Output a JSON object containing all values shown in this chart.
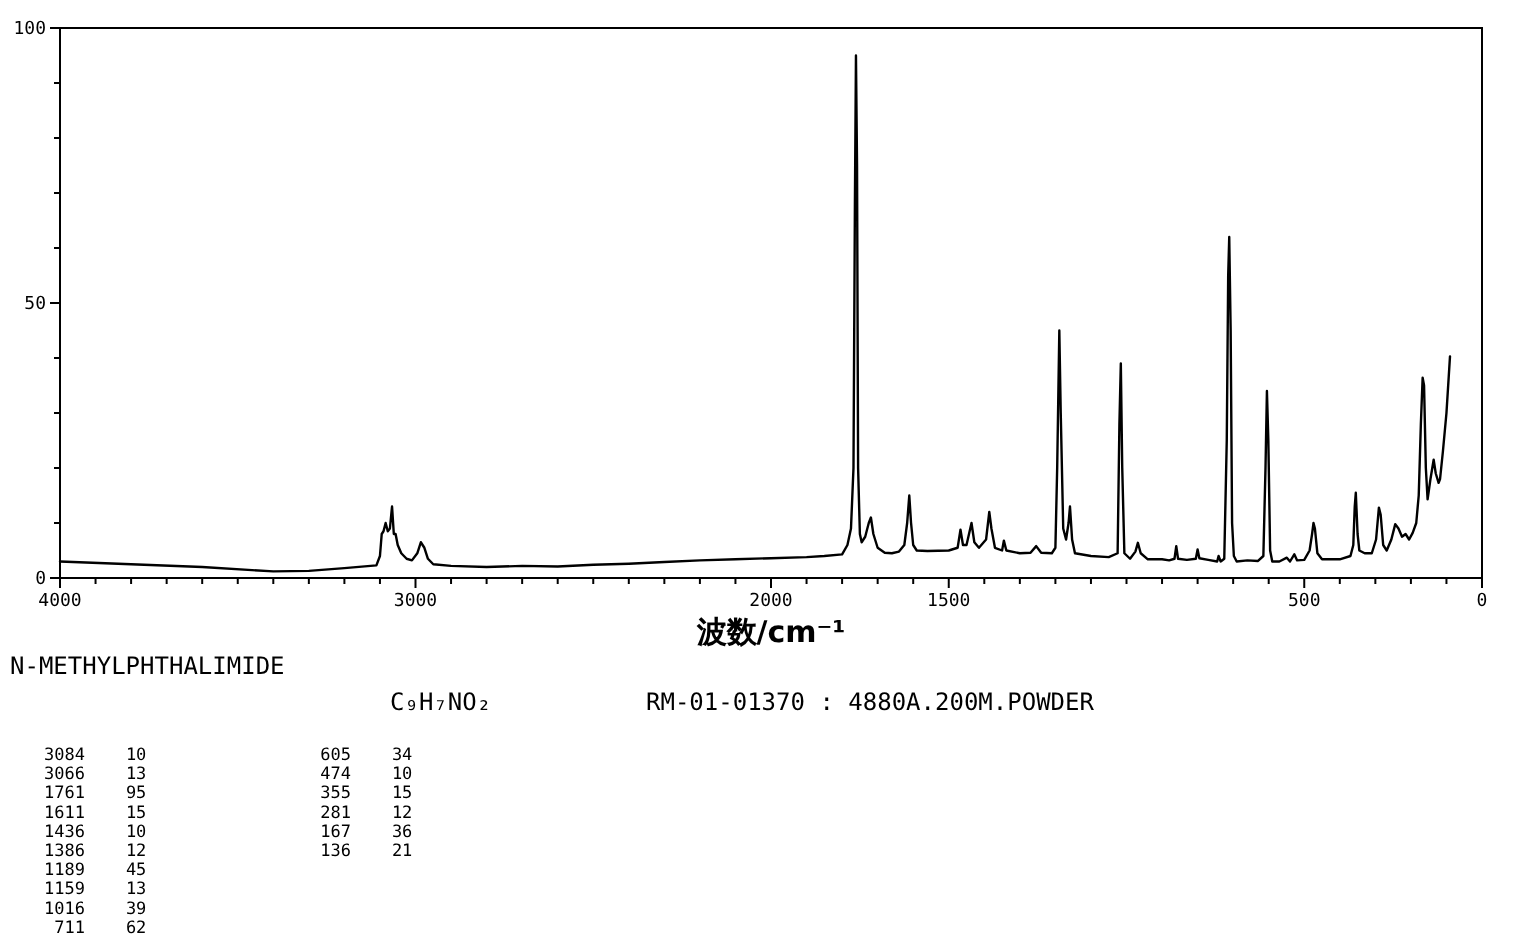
{
  "chart_data": {
    "type": "line",
    "title": "N-METHYLPHTHALIMIDE",
    "subtitle": "C₉H₇NO₂",
    "xlabel": "波数/cm⁻¹",
    "annotations": [
      "RM-01-01370 : 4880A.200M.POWDER",
      "3084    10",
      "3066    13",
      "1761    95",
      "1611    15",
      "1436    10",
      "1386    12",
      "1189    45",
      "1159    13",
      "1016    39",
      " 711    62",
      " 605    34",
      " 474    10",
      " 355    15",
      " 281    12",
      " 167    36",
      " 136    21"
    ],
    "xlim": [
      4000,
      0
    ],
    "ylim": [
      0,
      100
    ],
    "xticks": [
      4000,
      {
        "value": 3900,
        "label": null
      },
      {
        "value": 3800,
        "label": null
      },
      {
        "value": 3700,
        "label": null
      },
      {
        "value": 3600,
        "label": null
      },
      {
        "value": 3500,
        "label": null
      },
      {
        "value": 3400,
        "label": null
      },
      {
        "value": 3300,
        "label": null
      },
      {
        "value": 3200,
        "label": null
      },
      {
        "value": 3100,
        "label": null
      },
      3000,
      {
        "value": 2900,
        "label": null
      },
      {
        "value": 2800,
        "label": null
      },
      {
        "value": 2700,
        "label": null
      },
      {
        "value": 2600,
        "label": null
      },
      {
        "value": 2500,
        "label": null
      },
      {
        "value": 2400,
        "label": null
      },
      {
        "value": 2300,
        "label": null
      },
      {
        "value": 2200,
        "label": null
      },
      {
        "value": 2100,
        "label": null
      },
      2000,
      {
        "value": 1900,
        "label": null
      },
      {
        "value": 1800,
        "label": null
      },
      {
        "value": 1700,
        "label": null
      },
      {
        "value": 1600,
        "label": null
      },
      1500,
      {
        "value": 1400,
        "label": null
      },
      {
        "value": 1300,
        "label": null
      },
      {
        "value": 1200,
        "label": null
      },
      {
        "value": 1100,
        "label": null
      },
      {
        "value": 1000,
        "label": null
      },
      {
        "value": 900,
        "label": null
      },
      {
        "value": 800,
        "label": null
      },
      {
        "value": 700,
        "label": null
      },
      {
        "value": 600,
        "label": null
      },
      500,
      {
        "value": 400,
        "label": null
      },
      {
        "value": 300,
        "label": null
      },
      {
        "value": 200,
        "label": null
      },
      {
        "value": 100,
        "label": null
      },
      0
    ],
    "yticks": [
      0,
      {
        "value": 10,
        "label": null
      },
      {
        "value": 20,
        "label": null
      },
      {
        "value": 30,
        "label": null
      },
      {
        "value": 40,
        "label": null
      },
      50,
      {
        "value": 60,
        "label": null
      },
      {
        "value": 70,
        "label": null
      },
      {
        "value": 80,
        "label": null
      },
      {
        "value": 90,
        "label": null
      },
      100
    ],
    "series": [
      {
        "color": "#000000",
        "x": [
          4000,
          3800,
          3600,
          3400,
          3300,
          3200,
          3110,
          3100,
          3095,
          3090,
          3084,
          3078,
          3072,
          3066,
          3061,
          3056,
          3050,
          3040,
          3025,
          3010,
          2995,
          2985,
          2975,
          2965,
          2950,
          2900,
          2800,
          2700,
          2600,
          2500,
          2400,
          2300,
          2200,
          2100,
          2000,
          1900,
          1850,
          1800,
          1785,
          1775,
          1768,
          1764,
          1761,
          1758,
          1755,
          1750,
          1745,
          1735,
          1725,
          1719,
          1712,
          1700,
          1680,
          1660,
          1640,
          1625,
          1617,
          1611,
          1606,
          1600,
          1590,
          1560,
          1500,
          1475,
          1467,
          1460,
          1450,
          1436,
          1428,
          1415,
          1395,
          1386,
          1380,
          1370,
          1350,
          1345,
          1338,
          1300,
          1270,
          1254,
          1240,
          1210,
          1200,
          1195,
          1189,
          1185,
          1178,
          1170,
          1163,
          1159,
          1153,
          1145,
          1100,
          1050,
          1025,
          1020,
          1016,
          1012,
          1006,
          990,
          975,
          968,
          960,
          940,
          900,
          880,
          865,
          860,
          855,
          830,
          805,
          800,
          795,
          770,
          745,
          741,
          735,
          725,
          718,
          714,
          711,
          707,
          703,
          698,
          690,
          660,
          630,
          615,
          609,
          605,
          601,
          596,
          590,
          570,
          549,
          540,
          528,
          520,
          500,
          485,
          478,
          474,
          470,
          463,
          450,
          400,
          370,
          362,
          358,
          355,
          350,
          345,
          330,
          310,
          298,
          290,
          285,
          278,
          268,
          255,
          244,
          235,
          225,
          215,
          205,
          195,
          185,
          178,
          172,
          167,
          163,
          158,
          153,
          145,
          136,
          130,
          122,
          118,
          110,
          100,
          90
        ],
        "values": [
          3.0,
          2.5,
          2.0,
          1.2,
          1.3,
          1.8,
          2.3,
          4,
          8,
          8.5,
          10,
          8.5,
          9,
          13,
          8,
          8,
          6,
          4.5,
          3.5,
          3.2,
          4.5,
          6.5,
          5.5,
          3.5,
          2.5,
          2.2,
          2.0,
          2.2,
          2.1,
          2.4,
          2.6,
          2.9,
          3.2,
          3.4,
          3.6,
          3.8,
          4.0,
          4.3,
          6,
          9,
          20,
          68,
          95,
          75,
          20,
          8,
          6.5,
          7.5,
          10,
          11,
          8,
          5.5,
          4.6,
          4.5,
          4.8,
          6,
          10,
          15,
          10,
          6,
          5,
          4.9,
          5.0,
          5.5,
          8.8,
          6,
          6.0,
          10,
          6.5,
          5.5,
          7,
          12,
          9,
          5.5,
          5,
          6.8,
          5,
          4.5,
          4.6,
          5.8,
          4.6,
          4.5,
          5.5,
          20,
          45,
          30,
          9,
          7,
          10,
          13,
          7,
          4.5,
          4.0,
          3.8,
          4.5,
          28,
          39,
          20,
          4.5,
          3.5,
          4.8,
          6.4,
          4.5,
          3.4,
          3.4,
          3.2,
          3.5,
          5.8,
          3.5,
          3.3,
          3.5,
          5.2,
          3.6,
          3.3,
          3.0,
          4,
          3,
          3.5,
          25,
          55,
          62,
          45,
          10,
          4,
          3,
          3.2,
          3.1,
          4,
          20,
          34,
          25,
          5,
          3,
          3.0,
          3.7,
          3.0,
          4.3,
          3.2,
          3.3,
          5,
          8,
          10,
          9,
          4.5,
          3.4,
          3.4,
          4,
          6,
          13,
          15.5,
          8,
          5,
          4.5,
          4.5,
          7,
          12.8,
          11.5,
          6,
          5,
          7,
          9.8,
          9,
          7.5,
          8,
          7,
          8.2,
          10,
          15,
          28,
          36.4,
          35,
          20,
          14.3,
          18,
          21.5,
          19,
          17.3,
          18,
          23,
          30,
          40.3
        ]
      }
    ]
  }
}
